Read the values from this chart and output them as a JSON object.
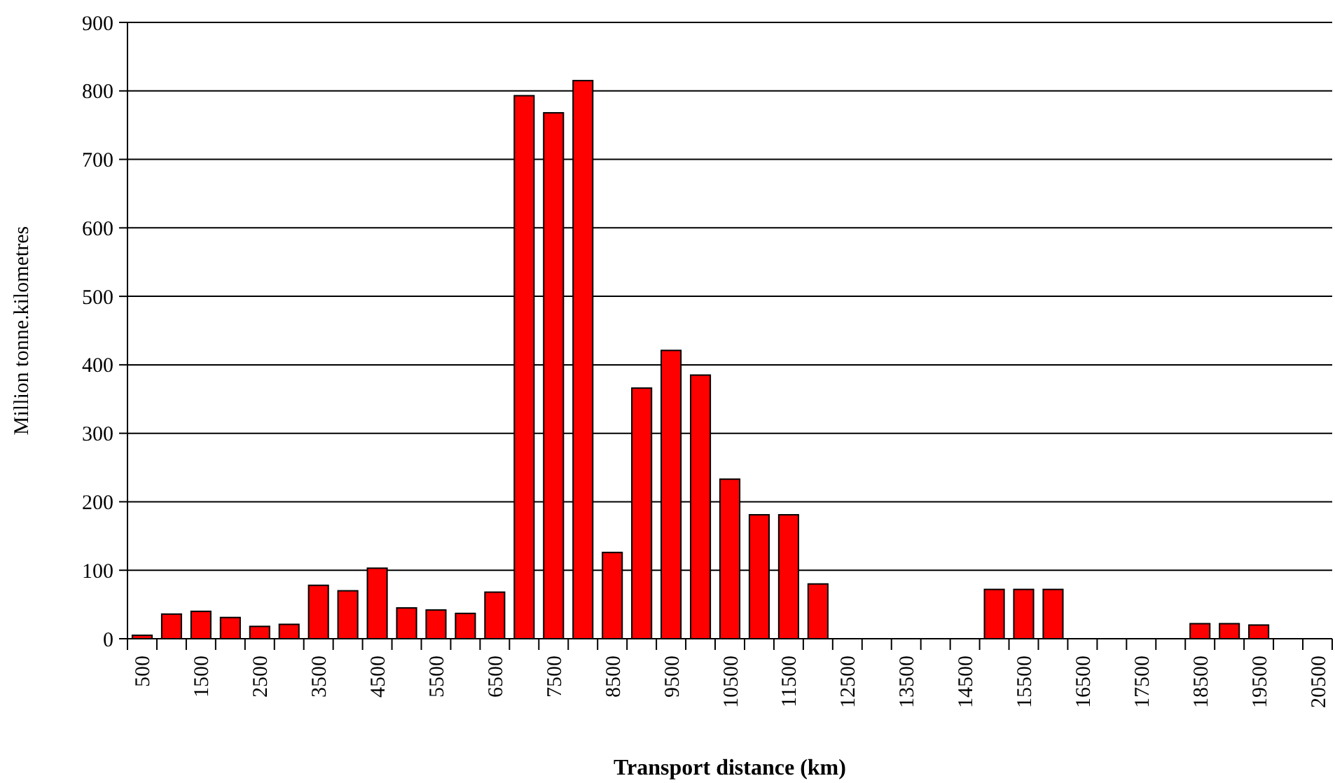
{
  "chart_data": {
    "type": "bar",
    "xlabel": "Transport distance (km)",
    "ylabel": "Million tonne.kilometres",
    "categories": [
      "500",
      null,
      "1500",
      null,
      "2500",
      null,
      "3500",
      null,
      "4500",
      null,
      "5500",
      null,
      "6500",
      null,
      "7500",
      null,
      "8500",
      null,
      "9500",
      null,
      "10500",
      null,
      "11500",
      null,
      "12500",
      null,
      "13500",
      null,
      "14500",
      null,
      "15500",
      null,
      "16500",
      null,
      "17500",
      null,
      "18500",
      null,
      "19500",
      null,
      "20500"
    ],
    "values": [
      5,
      36,
      40,
      31,
      18,
      21,
      78,
      70,
      103,
      45,
      42,
      37,
      68,
      793,
      768,
      815,
      126,
      366,
      421,
      385,
      233,
      181,
      181,
      80,
      0,
      0,
      0,
      0,
      0,
      72,
      72,
      72,
      0,
      0,
      0,
      0,
      22,
      22,
      20,
      0,
      0
    ],
    "color": "#ff0000",
    "ylim": [
      0,
      900
    ],
    "yticks": [
      0,
      100,
      200,
      300,
      400,
      500,
      600,
      700,
      800,
      900
    ],
    "grid": "y"
  }
}
